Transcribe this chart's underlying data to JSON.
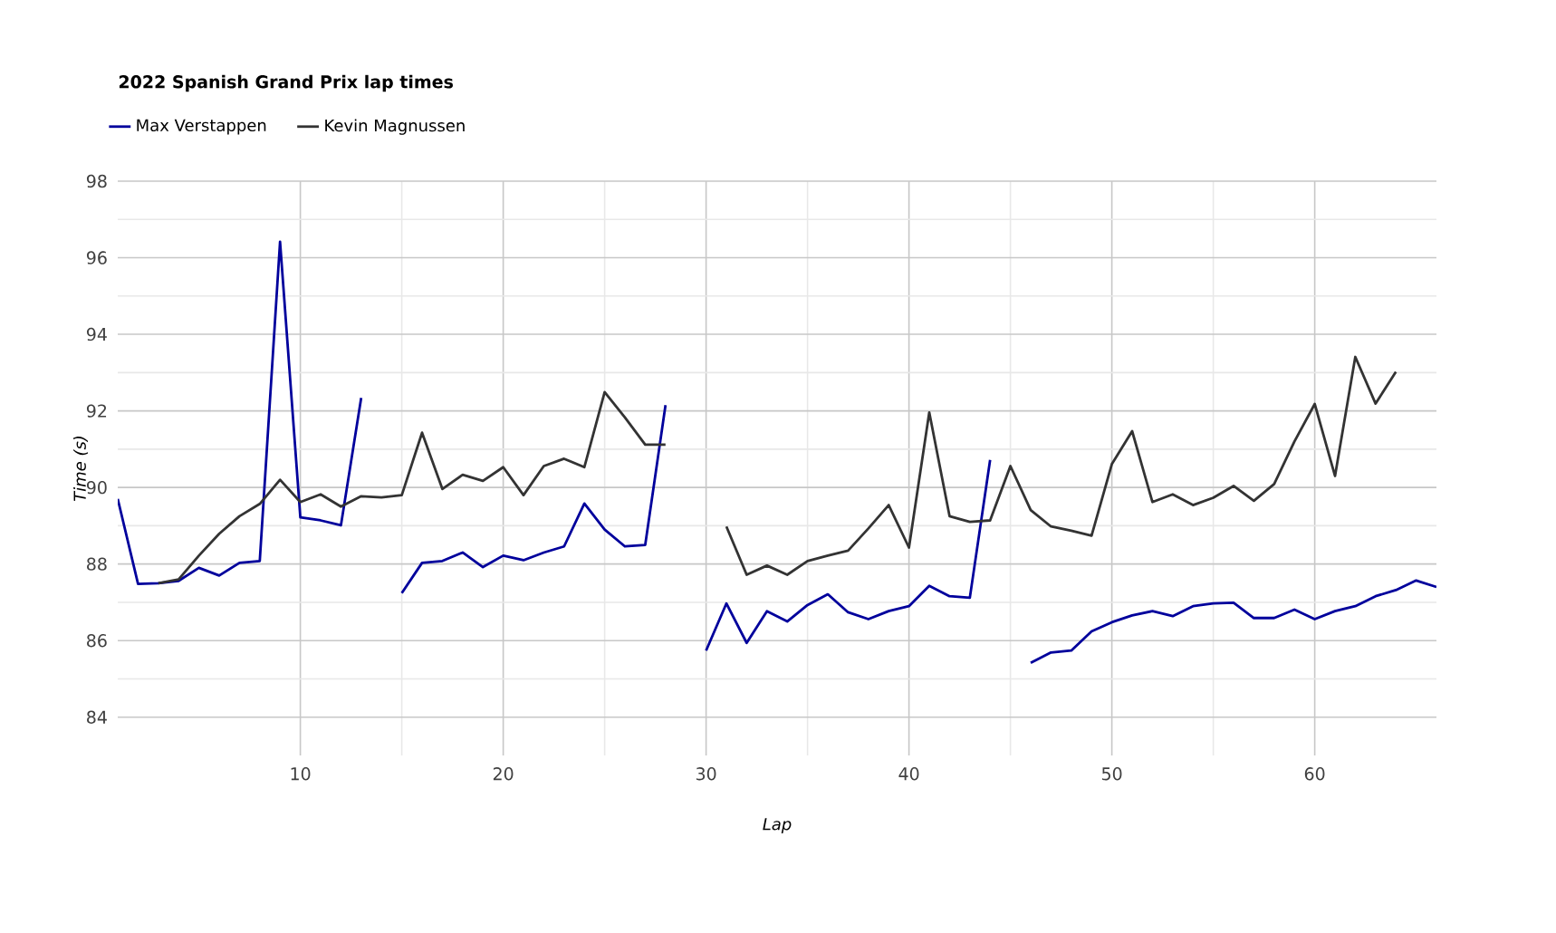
{
  "chart_data": {
    "type": "line",
    "title": "2022 Spanish Grand Prix lap times",
    "xlabel": "Lap",
    "ylabel": "Time (s)",
    "x": [
      1,
      2,
      3,
      4,
      5,
      6,
      7,
      8,
      9,
      10,
      11,
      12,
      13,
      14,
      15,
      16,
      17,
      18,
      19,
      20,
      21,
      22,
      23,
      24,
      25,
      26,
      27,
      28,
      29,
      30,
      31,
      32,
      33,
      34,
      35,
      36,
      37,
      38,
      39,
      40,
      41,
      42,
      43,
      44,
      45,
      46,
      47,
      48,
      49,
      50,
      51,
      52,
      53,
      54,
      55,
      56,
      57,
      58,
      59,
      60,
      61,
      62,
      63,
      64,
      65,
      66
    ],
    "series": [
      {
        "name": "Max Verstappen",
        "color": "#00009c",
        "values": [
          89.7,
          87.48,
          87.5,
          87.56,
          87.9,
          87.7,
          88.03,
          88.08,
          96.42,
          89.22,
          89.14,
          89.01,
          92.34,
          null,
          87.24,
          88.03,
          88.08,
          88.3,
          87.92,
          88.22,
          88.1,
          88.3,
          88.46,
          89.58,
          88.9,
          88.46,
          88.5,
          92.15,
          null,
          85.74,
          86.97,
          85.94,
          86.77,
          86.5,
          86.93,
          87.21,
          86.74,
          86.56,
          86.77,
          86.9,
          87.43,
          87.16,
          87.12,
          90.72,
          null,
          85.42,
          85.69,
          85.74,
          86.24,
          86.48,
          86.66,
          86.77,
          86.64,
          86.9,
          86.97,
          86.99,
          86.59,
          86.59,
          86.81,
          86.56,
          86.77,
          86.9,
          87.16,
          87.32,
          87.57,
          87.4
        ]
      },
      {
        "name": "Kevin Magnussen",
        "color": "#333333",
        "values": [
          null,
          null,
          87.5,
          87.6,
          88.22,
          88.79,
          89.25,
          89.57,
          90.2,
          89.62,
          89.82,
          89.5,
          89.77,
          89.74,
          89.8,
          91.43,
          89.96,
          90.33,
          90.17,
          90.53,
          89.8,
          90.56,
          90.75,
          90.53,
          92.49,
          91.83,
          91.12,
          91.12,
          null,
          null,
          88.98,
          87.72,
          87.96,
          87.72,
          88.08,
          88.22,
          88.35,
          88.93,
          89.54,
          88.43,
          91.96,
          89.25,
          89.1,
          89.14,
          90.56,
          89.41,
          88.98,
          88.87,
          88.74,
          90.61,
          91.47,
          89.62,
          89.82,
          89.54,
          89.73,
          90.04,
          89.65,
          90.09,
          91.2,
          92.18,
          90.3,
          93.41,
          92.19,
          93.02,
          null,
          null
        ]
      }
    ],
    "xlim": [
      1,
      66
    ],
    "ylim": [
      83,
      98
    ],
    "xticks": [
      10,
      20,
      30,
      40,
      50,
      60
    ],
    "yticks": [
      84,
      86,
      88,
      90,
      92,
      94,
      96,
      98
    ],
    "grid": true,
    "legend": "top left",
    "marker": "none",
    "line_style": "solid"
  }
}
